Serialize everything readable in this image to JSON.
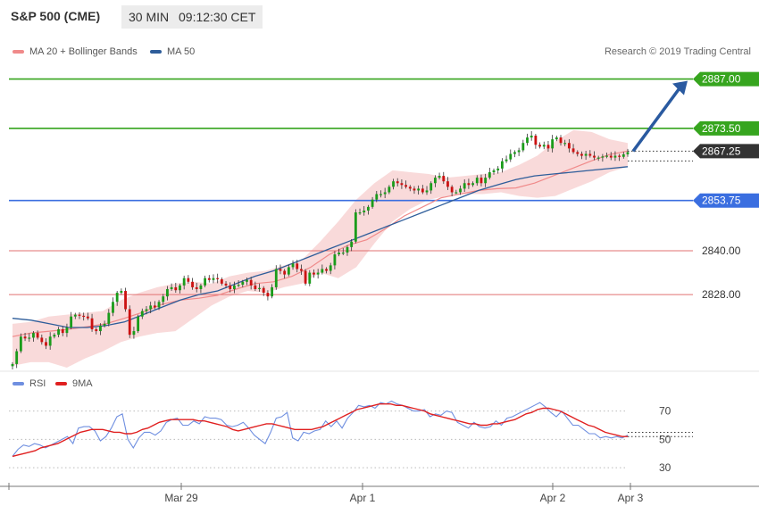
{
  "header": {
    "title": "S&P 500 (CME)",
    "timeframe": "30 MIN",
    "clock": "09:12:30 CET"
  },
  "legend": [
    {
      "label": "MA 20 + Bollinger Bands",
      "color": "#f08a8a"
    },
    {
      "label": "MA 50",
      "color": "#2e5d9a"
    }
  ],
  "credit": "Research © 2019 Trading Central",
  "rsi_legend": [
    {
      "label": "RSI",
      "color": "#6f8fe0"
    },
    {
      "label": "9MA",
      "color": "#e02020"
    }
  ],
  "chart_data": [
    {
      "type": "candlestick",
      "x_labels": [
        "Mar 29",
        "Apr 1",
        "Apr 2",
        "Apr 3"
      ],
      "ylim": [
        2808,
        2893
      ],
      "current_price": 2867.25,
      "levels": [
        {
          "value": 2887.0,
          "label": "2887.00",
          "kind": "target"
        },
        {
          "value": 2873.5,
          "label": "2873.50",
          "kind": "resistance"
        },
        {
          "value": 2867.25,
          "label": "2867.25",
          "kind": "last"
        },
        {
          "value": 2853.75,
          "label": "2853.75",
          "kind": "pivot"
        },
        {
          "value": 2840.0,
          "label": "2840.00",
          "kind": "support"
        },
        {
          "value": 2828.0,
          "label": "2828.00",
          "kind": "support"
        }
      ],
      "colors": {
        "up": "#1a9c1a",
        "down": "#cc1111",
        "target": "#36a51e",
        "pivot": "#3a6ee0",
        "support": "#e07070",
        "last": "#333333",
        "arrow": "#2a5aa0"
      },
      "close_path": [
        2809.0,
        2812.5,
        2816.5,
        2816.0,
        2816.2,
        2817.5,
        2816.2,
        2815.0,
        2814.0,
        2816.5,
        2817.0,
        2818.5,
        2817.5,
        2819.0,
        2822.0,
        2822.5,
        2822.2,
        2822.0,
        2821.5,
        2818.5,
        2818.0,
        2819.5,
        2820.0,
        2823.0,
        2826.0,
        2828.5,
        2829.0,
        2824.0,
        2817.0,
        2818.0,
        2822.0,
        2823.5,
        2824.0,
        2825.0,
        2824.5,
        2826.0,
        2827.5,
        2829.5,
        2830.0,
        2829.2,
        2830.5,
        2832.5,
        2831.5,
        2830.0,
        2829.5,
        2830.5,
        2832.5,
        2832.0,
        2832.5,
        2832.2,
        2831.0,
        2830.5,
        2829.5,
        2830.5,
        2830.7,
        2831.5,
        2832.0,
        2830.5,
        2829.5,
        2829.8,
        2828.5,
        2827.5,
        2830.0,
        2835.0,
        2834.5,
        2833.5,
        2835.5,
        2836.5,
        2835.0,
        2834.5,
        2831.0,
        2834.0,
        2833.5,
        2834.0,
        2835.0,
        2834.5,
        2836.0,
        2839.0,
        2839.5,
        2839.5,
        2841.0,
        2842.5,
        2850.5,
        2850.5,
        2851.0,
        2852.0,
        2854.0,
        2855.5,
        2855.5,
        2856.0,
        2857.5,
        2859.0,
        2858.5,
        2858.0,
        2857.5,
        2857.0,
        2856.5,
        2857.0,
        2856.0,
        2856.5,
        2858.5,
        2860.0,
        2860.5,
        2859.0,
        2857.5,
        2856.0,
        2856.0,
        2857.0,
        2858.5,
        2858.0,
        2858.5,
        2860.0,
        2858.5,
        2860.0,
        2861.5,
        2862.0,
        2862.5,
        2864.5,
        2865.0,
        2866.5,
        2867.0,
        2867.5,
        2869.5,
        2871.0,
        2871.5,
        2869.0,
        2868.5,
        2869.0,
        2868.0,
        2870.5,
        2871.0,
        2869.5,
        2869.5,
        2868.0,
        2867.0,
        2866.5,
        2866.0,
        2866.5,
        2866.0,
        2865.5,
        2865.5,
        2865.8,
        2866.0,
        2865.5,
        2866.0,
        2865.7,
        2866.4,
        2867.0
      ],
      "ma20": [
        2816.5,
        2817.5,
        2818.0,
        2818.5,
        2819.2,
        2820.0,
        2821.5,
        2823.2,
        2825.3,
        2826.5,
        2827.0,
        2827.8,
        2829.5,
        2831.0,
        2831.5,
        2833.0,
        2835.5,
        2839.0,
        2841.5,
        2843.0,
        2846.0,
        2849.5,
        2852.0,
        2854.5,
        2855.5,
        2856.5,
        2857.0,
        2857.2,
        2858.5,
        2860.5,
        2862.5,
        2864.5,
        2866.3,
        2867.3
      ],
      "bb_upper": [
        2820.0,
        2820.5,
        2822.0,
        2822.5,
        2823.0,
        2823.5,
        2826.5,
        2828.5,
        2830.0,
        2831.0,
        2831.5,
        2831.0,
        2833.0,
        2834.0,
        2834.5,
        2836.0,
        2837.5,
        2842.5,
        2848.0,
        2854.0,
        2858.5,
        2862.0,
        2861.5,
        2861.0,
        2860.0,
        2860.5,
        2861.0,
        2861.5,
        2863.5,
        2866.0,
        2870.0,
        2873.0,
        2872.5,
        2870.5,
        2869.5
      ],
      "bb_lower": [
        2808.5,
        2809.5,
        2809.5,
        2808.0,
        2810.5,
        2812.5,
        2815.0,
        2816.5,
        2817.5,
        2818.0,
        2821.5,
        2825.0,
        2827.5,
        2829.0,
        2828.5,
        2830.0,
        2831.0,
        2834.0,
        2832.5,
        2835.5,
        2842.0,
        2848.0,
        2851.5,
        2854.0,
        2855.0,
        2855.5,
        2855.5,
        2856.0,
        2855.0,
        2854.5,
        2855.0,
        2857.0,
        2859.0,
        2861.5,
        2863.0
      ],
      "ma50": [
        2821.5,
        2821.0,
        2820.0,
        2819.0,
        2819.0,
        2819.5,
        2820.5,
        2822.5,
        2824.5,
        2826.5,
        2828.0,
        2829.0,
        2831.0,
        2833.0,
        2834.5,
        2836.5,
        2838.5,
        2840.5,
        2842.5,
        2844.5,
        2846.5,
        2848.5,
        2850.5,
        2852.5,
        2854.5,
        2856.5,
        2858.0,
        2859.5,
        2860.5,
        2861.0,
        2861.5,
        2862.0,
        2862.5,
        2863.0
      ],
      "forecast_arrow": {
        "from": 2867.25,
        "to": 2887.0
      }
    },
    {
      "type": "line",
      "name": "RSI",
      "ylim": [
        20,
        83
      ],
      "grid": [
        30,
        50,
        70
      ],
      "tick_labels": [
        "70",
        "50",
        "30"
      ],
      "series": [
        {
          "name": "RSI",
          "color": "#6f8fe0",
          "values": [
            38,
            43,
            46,
            45,
            47,
            46,
            44,
            46,
            48,
            50,
            52,
            47,
            58,
            59,
            59,
            56,
            49,
            52,
            58,
            66,
            68,
            50,
            44,
            51,
            55,
            55,
            53,
            56,
            62,
            64,
            65,
            60,
            60,
            63,
            61,
            66,
            65,
            65,
            64,
            60,
            59,
            60,
            62,
            58,
            53,
            50,
            47,
            55,
            65,
            66,
            69,
            51,
            49,
            55,
            54,
            56,
            57,
            63,
            59,
            63,
            58,
            65,
            69,
            74,
            73,
            74,
            72,
            76,
            75,
            77,
            75,
            74,
            72,
            70,
            70,
            71,
            66,
            68,
            67,
            70,
            69,
            62,
            60,
            58,
            62,
            59,
            58,
            59,
            63,
            60,
            65,
            66,
            68,
            70,
            72,
            74,
            76,
            73,
            69,
            66,
            70,
            65,
            60,
            60,
            57,
            54,
            54,
            51,
            52,
            51,
            52,
            51,
            53
          ]
        },
        {
          "name": "9MA",
          "color": "#e02020",
          "values": [
            38,
            39,
            40,
            41,
            42,
            44,
            45,
            46,
            47,
            49,
            51,
            53,
            55,
            56,
            57,
            57,
            57,
            56,
            55,
            55,
            54,
            54,
            55,
            57,
            58,
            60,
            62,
            63,
            64,
            64,
            64,
            64,
            64,
            63,
            63,
            62,
            61,
            60,
            59,
            57,
            56,
            57,
            58,
            59,
            60,
            61,
            61,
            60,
            59,
            58,
            57,
            57,
            57,
            57,
            58,
            59,
            61,
            63,
            65,
            67,
            69,
            71,
            72,
            73,
            74,
            75,
            75,
            75,
            74,
            74,
            73,
            72,
            71,
            70,
            68,
            67,
            66,
            65,
            64,
            63,
            62,
            61,
            61,
            60,
            60,
            61,
            61,
            62,
            63,
            64,
            66,
            68,
            69,
            71,
            72,
            72,
            71,
            70,
            68,
            66,
            64,
            62,
            60,
            59,
            57,
            55,
            54,
            53,
            52,
            52
          ]
        }
      ]
    }
  ]
}
